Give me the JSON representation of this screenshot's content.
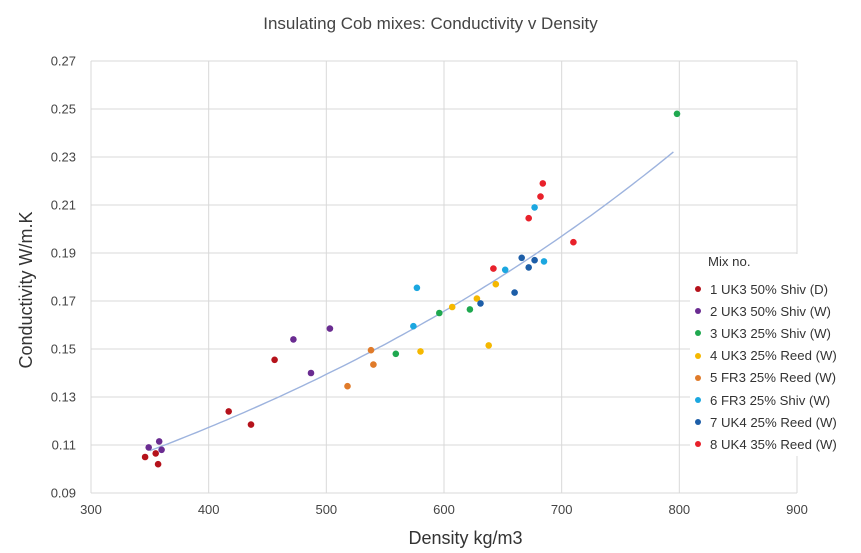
{
  "chart_data": {
    "type": "scatter",
    "title": "Insulating Cob mixes: Conductivity v Density",
    "xlabel": "Density kg/m3",
    "ylabel": "Conductivity W/m.K",
    "xlim": [
      300,
      900
    ],
    "ylim": [
      0.09,
      0.27
    ],
    "xticks": [
      "300",
      "400",
      "500",
      "600",
      "700",
      "800",
      "900"
    ],
    "yticks": [
      "0.09",
      "0.11",
      "0.13",
      "0.15",
      "0.17",
      "0.19",
      "0.21",
      "0.23",
      "0.25",
      "0.27"
    ],
    "grid": true,
    "legend_title": "Mix no.",
    "legend_position": "right",
    "series": [
      {
        "name": "1 UK3 50% Shiv (D)",
        "color": "#b5121b",
        "points": [
          [
            346,
            0.105
          ],
          [
            355,
            0.1065
          ],
          [
            357,
            0.102
          ],
          [
            417,
            0.124
          ],
          [
            436,
            0.1185
          ],
          [
            456,
            0.1455
          ]
        ]
      },
      {
        "name": "2 UK3 50% Shiv (W)",
        "color": "#6a2c91",
        "points": [
          [
            349,
            0.109
          ],
          [
            358,
            0.1115
          ],
          [
            360,
            0.108
          ],
          [
            472,
            0.154
          ],
          [
            487,
            0.14
          ],
          [
            503,
            0.1585
          ]
        ]
      },
      {
        "name": "3 UK3 25% Shiv (W)",
        "color": "#1fa84f",
        "points": [
          [
            559,
            0.148
          ],
          [
            596,
            0.165
          ],
          [
            622,
            0.1665
          ],
          [
            798,
            0.248
          ]
        ]
      },
      {
        "name": "4 UK3 25% Reed (W)",
        "color": "#f5b800",
        "points": [
          [
            580,
            0.149
          ],
          [
            607,
            0.1675
          ],
          [
            628,
            0.171
          ],
          [
            638,
            0.1515
          ],
          [
            644,
            0.177
          ]
        ]
      },
      {
        "name": "5 FR3 25% Reed (W)",
        "color": "#e07b2a",
        "points": [
          [
            518,
            0.1345
          ],
          [
            538,
            0.1495
          ],
          [
            540,
            0.1435
          ]
        ]
      },
      {
        "name": "6 FR3 25% Shiv (W)",
        "color": "#1ba7e0",
        "points": [
          [
            574,
            0.1595
          ],
          [
            577,
            0.1755
          ],
          [
            652,
            0.183
          ],
          [
            677,
            0.209
          ],
          [
            685,
            0.1865
          ]
        ]
      },
      {
        "name": "7 UK4 25% Reed (W)",
        "color": "#1d5ea8",
        "points": [
          [
            631,
            0.169
          ],
          [
            660,
            0.1735
          ],
          [
            666,
            0.188
          ],
          [
            672,
            0.184
          ],
          [
            677,
            0.187
          ]
        ]
      },
      {
        "name": "8 UK4 35% Reed (W)",
        "color": "#e8212b",
        "points": [
          [
            642,
            0.1835
          ],
          [
            672,
            0.2045
          ],
          [
            682,
            0.2135
          ],
          [
            684,
            0.219
          ],
          [
            710,
            0.1945
          ]
        ]
      }
    ],
    "trendline": {
      "type": "exponential",
      "color": "#9db3de",
      "points": [
        [
          350,
          0.1105
        ],
        [
          500,
          0.1375
        ],
        [
          600,
          0.16
        ],
        [
          700,
          0.1955
        ],
        [
          798,
          0.2405
        ]
      ]
    }
  }
}
